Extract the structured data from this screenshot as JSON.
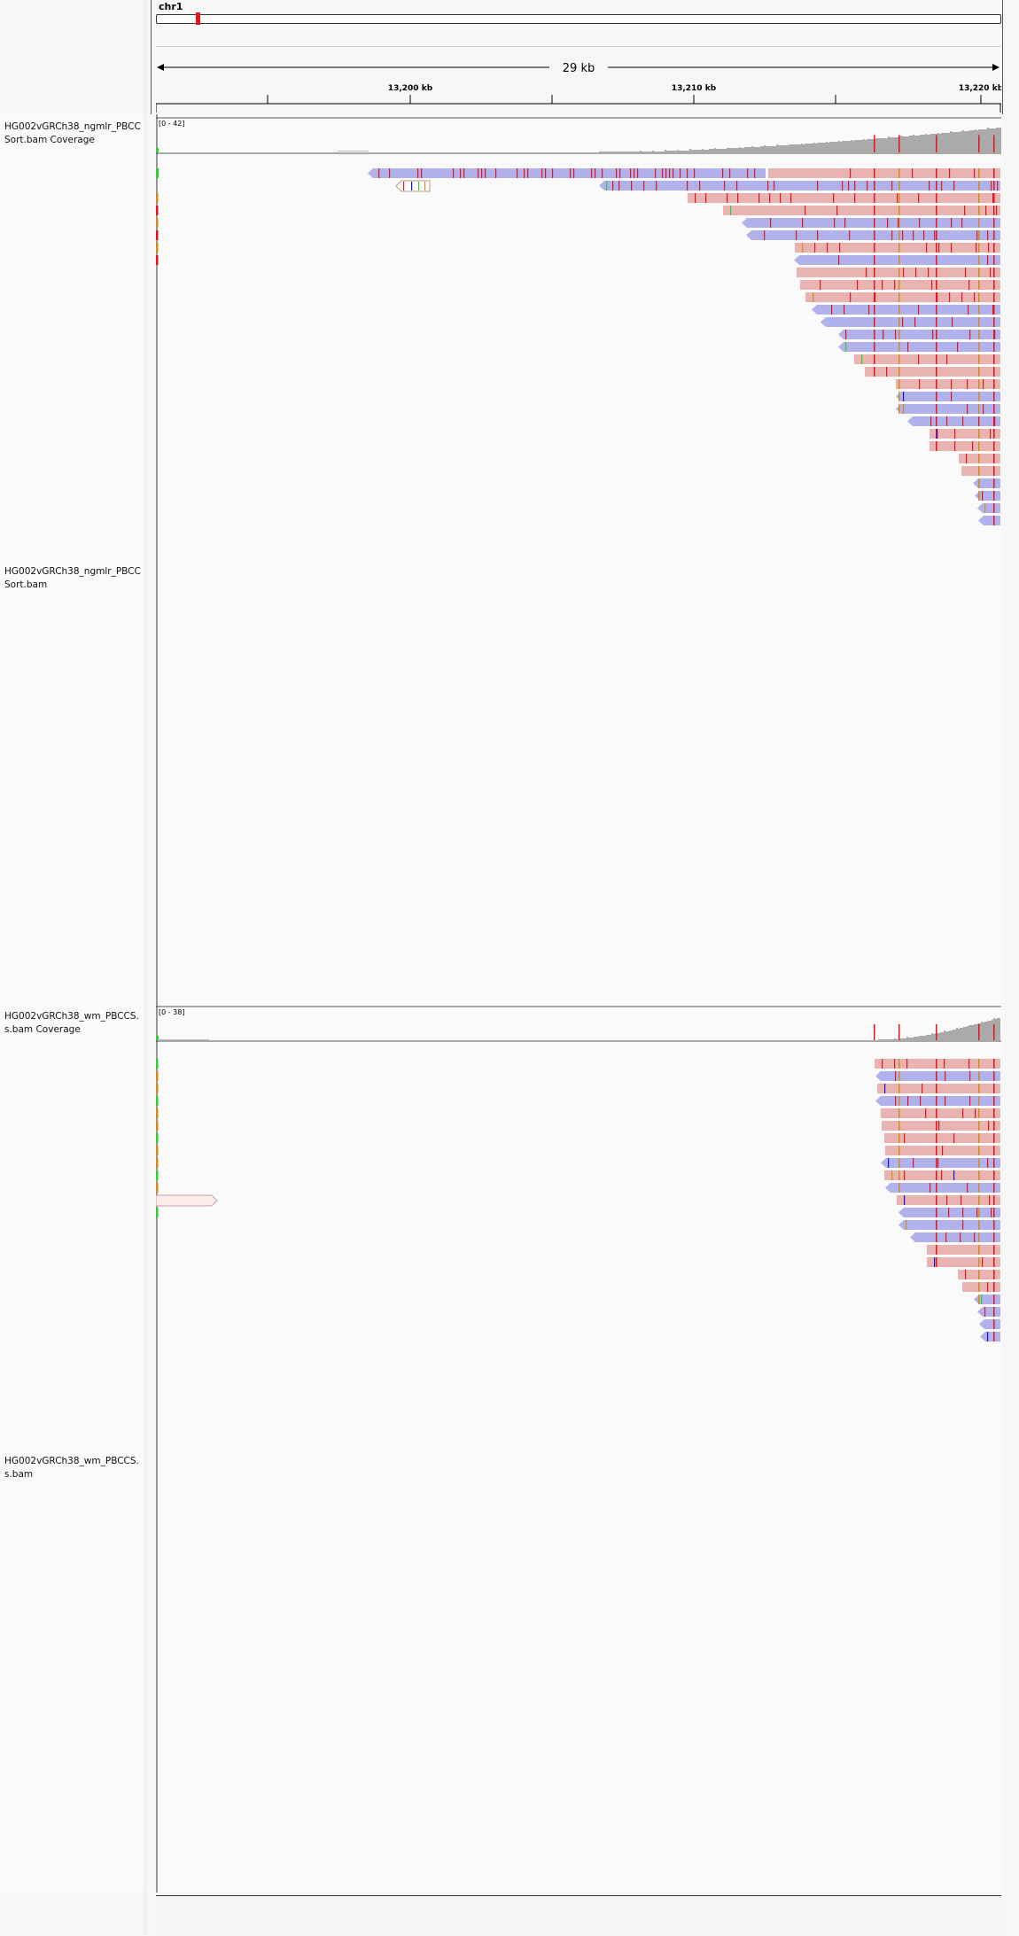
{
  "header": {
    "chromosome": "chr1",
    "span_label": "29 kb",
    "tick_labels": [
      "13,200 kb",
      "13,210 kb",
      "13,220 kb"
    ]
  },
  "tracks": [
    {
      "id": "coverage1",
      "name": "HG002vGRCh38_ngmlr_PBCCSort.bam Coverage",
      "range_label": "[0 - 42]"
    },
    {
      "id": "alignments1",
      "name": "HG002vGRCh38_ngmlr_PBCCSort.bam"
    },
    {
      "id": "coverage2",
      "name": "HG002vGRCh38_wm_PBCCS.s.bam Coverage",
      "range_label": "[0 - 38]"
    },
    {
      "id": "alignments2",
      "name": "HG002vGRCh38_wm_PBCCS.s.bam"
    }
  ],
  "colors": {
    "forward_read": "#e9b3b2",
    "reverse_read": "#b1b1ec",
    "coverage": "#aaaaaa",
    "mismatch_a": "#2dd32d",
    "mismatch_c": "#1414d8",
    "mismatch_g": "#d18c1a",
    "mismatch_t": "#e4141c",
    "chromosome_marker": "#e8141c"
  }
}
